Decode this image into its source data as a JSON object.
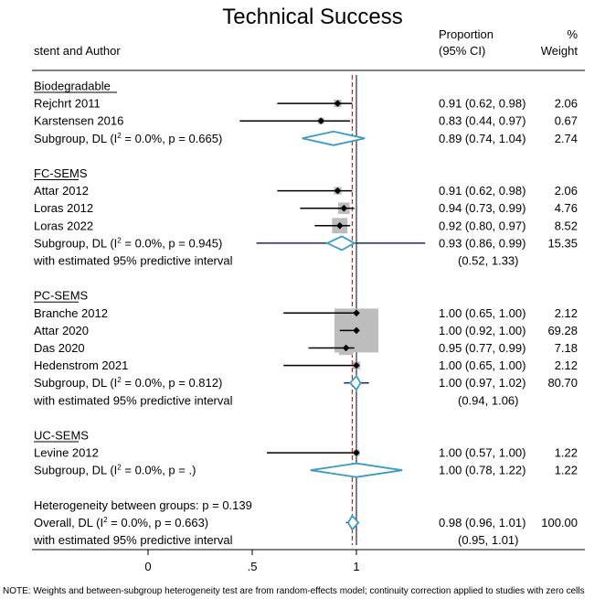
{
  "chart_data": {
    "type": "forest",
    "title": "Technical Success",
    "headers": {
      "study": "stent and Author",
      "proportion_line1": "Proportion",
      "proportion_line2": "(95% CI)",
      "weight_line1": "%",
      "weight_line2": "Weight"
    },
    "xlim": [
      0,
      1.1
    ],
    "null_line": 1,
    "overall_line": 0.98,
    "xticks": [
      {
        "value": 0,
        "label": "0"
      },
      {
        "value": 0.5,
        "label": ".5"
      },
      {
        "value": 1,
        "label": "1"
      }
    ],
    "rows": [
      {
        "type": "group",
        "label": "Biodegradable"
      },
      {
        "type": "study",
        "label": "Rejchrt 2011",
        "est": 0.91,
        "lo": 0.62,
        "hi": 0.98,
        "ci_text": "0.91 (0.62, 0.98)",
        "weight": 2.06,
        "weight_text": "2.06"
      },
      {
        "type": "study",
        "label": "Karstensen 2016",
        "est": 0.83,
        "lo": 0.44,
        "hi": 0.97,
        "ci_text": "0.83 (0.44, 0.97)",
        "weight": 0.67,
        "weight_text": "0.67"
      },
      {
        "type": "subgroup",
        "label_pre": "Subgroup, DL (I",
        "label_sup": "2",
        "label_post": " = 0.0%, p = 0.665)",
        "est": 0.89,
        "lo": 0.74,
        "hi": 1.04,
        "ci_text": "0.89 (0.74, 1.04)",
        "weight_text": "2.74"
      },
      {
        "type": "spacer"
      },
      {
        "type": "group",
        "label": "FC-SEMS"
      },
      {
        "type": "study",
        "label": "Attar 2012",
        "est": 0.91,
        "lo": 0.62,
        "hi": 0.98,
        "ci_text": "0.91 (0.62, 0.98)",
        "weight": 2.06,
        "weight_text": "2.06"
      },
      {
        "type": "study",
        "label": "Loras 2012",
        "est": 0.94,
        "lo": 0.73,
        "hi": 0.99,
        "ci_text": "0.94 (0.73, 0.99)",
        "weight": 4.76,
        "weight_text": "4.76"
      },
      {
        "type": "study",
        "label": "Loras 2022",
        "est": 0.92,
        "lo": 0.8,
        "hi": 0.97,
        "ci_text": "0.92 (0.80, 0.97)",
        "weight": 8.52,
        "weight_text": "8.52"
      },
      {
        "type": "subgroup",
        "label_pre": "Subgroup, DL (I",
        "label_sup": "2",
        "label_post": " = 0.0%, p = 0.945)",
        "est": 0.93,
        "lo": 0.86,
        "hi": 0.99,
        "ci_text": "0.93 (0.86, 0.99)",
        "weight_text": "15.35",
        "pi_lo": 0.52,
        "pi_hi": 1.33
      },
      {
        "type": "pi",
        "label": "with estimated 95% predictive interval",
        "ci_text": "(0.52, 1.33)"
      },
      {
        "type": "spacer"
      },
      {
        "type": "group",
        "label": "PC-SEMS"
      },
      {
        "type": "study",
        "label": "Branche 2012",
        "est": 1.0,
        "lo": 0.65,
        "hi": 1.0,
        "ci_text": "1.00 (0.65, 1.00)",
        "weight": 2.12,
        "weight_text": "2.12"
      },
      {
        "type": "study",
        "label": "Attar 2020",
        "est": 1.0,
        "lo": 0.92,
        "hi": 1.0,
        "ci_text": "1.00 (0.92, 1.00)",
        "weight": 69.28,
        "weight_text": "69.28"
      },
      {
        "type": "study",
        "label": "Das 2020",
        "est": 0.95,
        "lo": 0.77,
        "hi": 0.99,
        "ci_text": "0.95 (0.77, 0.99)",
        "weight": 7.18,
        "weight_text": "7.18"
      },
      {
        "type": "study",
        "label": "Hedenstrom 2021",
        "est": 1.0,
        "lo": 0.65,
        "hi": 1.0,
        "ci_text": "1.00 (0.65, 1.00)",
        "weight": 2.12,
        "weight_text": "2.12"
      },
      {
        "type": "subgroup",
        "label_pre": "Subgroup, DL (I",
        "label_sup": "2",
        "label_post": " = 0.0%, p = 0.812)",
        "est": 1.0,
        "lo": 0.97,
        "hi": 1.02,
        "ci_text": "1.00 (0.97, 1.02)",
        "weight_text": "80.70",
        "pi_lo": 0.94,
        "pi_hi": 1.06
      },
      {
        "type": "pi",
        "label": "with estimated 95% predictive interval",
        "ci_text": "(0.94, 1.06)"
      },
      {
        "type": "spacer"
      },
      {
        "type": "group",
        "label": "UC-SEMS"
      },
      {
        "type": "study",
        "label": "Levine 2012",
        "est": 1.0,
        "lo": 0.57,
        "hi": 1.0,
        "ci_text": "1.00 (0.57, 1.00)",
        "weight": 1.22,
        "weight_text": "1.22"
      },
      {
        "type": "subgroup",
        "label_pre": "Subgroup, DL (I",
        "label_sup": "2",
        "label_post": " = 0.0%, p = .)",
        "est": 1.0,
        "lo": 0.78,
        "hi": 1.22,
        "ci_text": "1.00 (0.78, 1.22)",
        "weight_text": "1.22"
      },
      {
        "type": "spacer"
      },
      {
        "type": "text",
        "label": "Heterogeneity between groups: p = 0.139"
      },
      {
        "type": "overall",
        "label_pre": "Overall, DL (I",
        "label_sup": "2",
        "label_post": " = 0.0%, p = 0.663)",
        "est": 0.98,
        "lo": 0.96,
        "hi": 1.01,
        "ci_text": "0.98 (0.96, 1.01)",
        "weight_text": "100.00",
        "pi_lo": 0.95,
        "pi_hi": 1.01
      },
      {
        "type": "pi",
        "label": "with estimated 95% predictive interval",
        "ci_text": "(0.95, 1.01)"
      }
    ],
    "note": "NOTE: Weights and between-subgroup heterogeneity test are from random-effects model; continuity correction applied to studies with zero cells",
    "colors": {
      "diamond": "#3a9ac4",
      "pi_line": "#1a2a6c",
      "null_line": "#000000",
      "overall_line": "#d02020",
      "weight_box": "#bdbdbd",
      "point": "#000000"
    }
  }
}
